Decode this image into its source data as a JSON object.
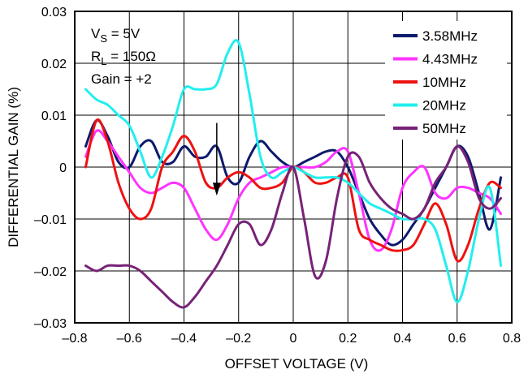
{
  "chart_data": {
    "type": "line",
    "xlabel": "OFFSET VOLTAGE (V)",
    "ylabel": "DIFFERENTIAL GAIN (%)",
    "xlim": [
      -0.8,
      0.8
    ],
    "ylim": [
      -0.03,
      0.03
    ],
    "xticks": [
      "–0.8",
      "–0.6",
      "–0.4",
      "–0.2",
      "0",
      "0.2",
      "0.4",
      "0.6",
      "0.8"
    ],
    "yticks": [
      "–0.03",
      "–0.02",
      "–0.01",
      "0",
      "0.01",
      "0.02",
      "0.03"
    ],
    "grid": true,
    "legend_position": "top-right",
    "annotations": {
      "vs": "V",
      "vs_sub": "S",
      "vs_rest": " = 5V",
      "rl": "R",
      "rl_sub": "L",
      "rl_rest": " = 150Ω",
      "gain": "Gain = +2"
    },
    "series": [
      {
        "name": "3.58MHz",
        "color": "#0d1a6b",
        "x": [
          -0.76,
          -0.72,
          -0.68,
          -0.64,
          -0.6,
          -0.56,
          -0.52,
          -0.48,
          -0.44,
          -0.4,
          -0.36,
          -0.32,
          -0.28,
          -0.24,
          -0.2,
          -0.16,
          -0.12,
          -0.08,
          -0.04,
          0,
          0.04,
          0.08,
          0.12,
          0.16,
          0.2,
          0.24,
          0.28,
          0.32,
          0.36,
          0.4,
          0.44,
          0.48,
          0.52,
          0.56,
          0.6,
          0.64,
          0.68,
          0.72,
          0.76
        ],
        "y": [
          0.004,
          0.009,
          0.006,
          0.001,
          0.0,
          0.004,
          0.005,
          0.001,
          0.001,
          0.004,
          0.002,
          0.002,
          0.004,
          -0.002,
          -0.003,
          0.002,
          0.005,
          0.003,
          0.001,
          0.0,
          0.001,
          0.002,
          0.003,
          0.003,
          0.0,
          -0.005,
          -0.01,
          -0.013,
          -0.015,
          -0.014,
          -0.011,
          -0.008,
          -0.004,
          0.0,
          0.004,
          0.002,
          -0.005,
          -0.012,
          -0.002
        ]
      },
      {
        "name": "4.43MHz",
        "color": "#ff33ff",
        "x": [
          -0.76,
          -0.72,
          -0.68,
          -0.64,
          -0.6,
          -0.56,
          -0.52,
          -0.48,
          -0.44,
          -0.4,
          -0.36,
          -0.32,
          -0.28,
          -0.24,
          -0.2,
          -0.16,
          -0.12,
          -0.08,
          -0.04,
          0,
          0.04,
          0.08,
          0.12,
          0.16,
          0.2,
          0.24,
          0.28,
          0.32,
          0.36,
          0.4,
          0.44,
          0.48,
          0.52,
          0.56,
          0.6,
          0.64,
          0.68,
          0.72,
          0.76
        ],
        "y": [
          0.002,
          0.007,
          0.005,
          0.002,
          -0.001,
          -0.004,
          -0.005,
          -0.004,
          -0.003,
          -0.004,
          -0.008,
          -0.012,
          -0.014,
          -0.011,
          -0.006,
          -0.003,
          -0.002,
          -0.001,
          0.0,
          0.0,
          0.0,
          0.0,
          0.001,
          0.003,
          0.003,
          -0.005,
          -0.014,
          -0.016,
          -0.012,
          -0.004,
          -0.001,
          0.0,
          -0.005,
          -0.006,
          -0.004,
          -0.004,
          -0.005,
          -0.006,
          -0.009
        ]
      },
      {
        "name": "10MHz",
        "color": "#ee1111",
        "x": [
          -0.76,
          -0.72,
          -0.68,
          -0.64,
          -0.6,
          -0.56,
          -0.52,
          -0.48,
          -0.44,
          -0.4,
          -0.36,
          -0.32,
          -0.28,
          -0.24,
          -0.2,
          -0.16,
          -0.12,
          -0.08,
          -0.04,
          0,
          0.04,
          0.08,
          0.12,
          0.16,
          0.2,
          0.24,
          0.28,
          0.32,
          0.36,
          0.4,
          0.44,
          0.48,
          0.52,
          0.56,
          0.6,
          0.64,
          0.68,
          0.72,
          0.76
        ],
        "y": [
          0.0,
          0.009,
          0.005,
          -0.003,
          -0.008,
          -0.01,
          -0.008,
          0.0,
          0.003,
          0.006,
          0.003,
          -0.003,
          -0.004,
          -0.002,
          -0.001,
          -0.002,
          -0.004,
          -0.004,
          -0.003,
          0.0,
          -0.001,
          -0.003,
          -0.003,
          -0.002,
          -0.002,
          -0.012,
          -0.014,
          -0.015,
          -0.016,
          -0.016,
          -0.015,
          -0.011,
          -0.007,
          -0.011,
          -0.018,
          -0.015,
          -0.008,
          -0.003,
          -0.004
        ]
      },
      {
        "name": "20MHz",
        "color": "#22eeee",
        "x": [
          -0.76,
          -0.72,
          -0.68,
          -0.64,
          -0.6,
          -0.56,
          -0.52,
          -0.48,
          -0.44,
          -0.4,
          -0.36,
          -0.32,
          -0.28,
          -0.24,
          -0.2,
          -0.16,
          -0.12,
          -0.08,
          -0.04,
          0,
          0.04,
          0.08,
          0.12,
          0.16,
          0.2,
          0.24,
          0.28,
          0.32,
          0.36,
          0.4,
          0.44,
          0.48,
          0.52,
          0.56,
          0.6,
          0.64,
          0.68,
          0.72,
          0.76
        ],
        "y": [
          0.015,
          0.013,
          0.012,
          0.01,
          0.008,
          0.003,
          -0.002,
          0.002,
          0.008,
          0.015,
          0.015,
          0.015,
          0.016,
          0.022,
          0.024,
          0.014,
          0.002,
          -0.002,
          -0.001,
          0.0,
          -0.001,
          -0.002,
          -0.002,
          -0.002,
          -0.003,
          -0.005,
          -0.007,
          -0.008,
          -0.009,
          -0.01,
          -0.01,
          -0.01,
          -0.012,
          -0.019,
          -0.026,
          -0.02,
          -0.01,
          -0.004,
          -0.019
        ]
      },
      {
        "name": "50MHz",
        "color": "#772277",
        "x": [
          -0.76,
          -0.72,
          -0.68,
          -0.64,
          -0.6,
          -0.56,
          -0.52,
          -0.48,
          -0.44,
          -0.4,
          -0.36,
          -0.32,
          -0.28,
          -0.24,
          -0.2,
          -0.16,
          -0.12,
          -0.08,
          -0.04,
          0,
          0.04,
          0.08,
          0.12,
          0.16,
          0.2,
          0.24,
          0.28,
          0.32,
          0.36,
          0.4,
          0.44,
          0.48,
          0.52,
          0.56,
          0.6,
          0.64,
          0.68,
          0.72,
          0.76
        ],
        "y": [
          -0.019,
          -0.02,
          -0.019,
          -0.019,
          -0.019,
          -0.02,
          -0.022,
          -0.024,
          -0.026,
          -0.027,
          -0.025,
          -0.022,
          -0.019,
          -0.015,
          -0.011,
          -0.011,
          -0.015,
          -0.012,
          -0.005,
          0.0,
          -0.01,
          -0.021,
          -0.018,
          -0.006,
          0.002,
          0.002,
          -0.003,
          -0.006,
          -0.008,
          -0.009,
          -0.01,
          -0.008,
          -0.003,
          0.0,
          0.004,
          0.001,
          -0.006,
          -0.008,
          -0.006
        ]
      }
    ]
  }
}
